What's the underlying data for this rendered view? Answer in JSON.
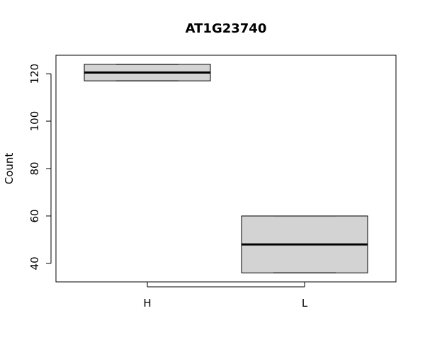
{
  "chart_data": {
    "type": "boxplot",
    "title": "AT1G23740",
    "xlabel": "",
    "ylabel": "Count",
    "categories": [
      "H",
      "L"
    ],
    "boxes": [
      {
        "category": "H",
        "min": 117,
        "q1": 117,
        "median": 120.5,
        "q3": 124,
        "max": 124
      },
      {
        "category": "L",
        "min": 36,
        "q1": 36,
        "median": 48,
        "q3": 60,
        "max": 60
      }
    ],
    "yticks": [
      40,
      60,
      80,
      100,
      120
    ],
    "ylim": [
      32.2,
      127.8
    ],
    "box_fill": "#d3d3d3",
    "grid": false
  }
}
